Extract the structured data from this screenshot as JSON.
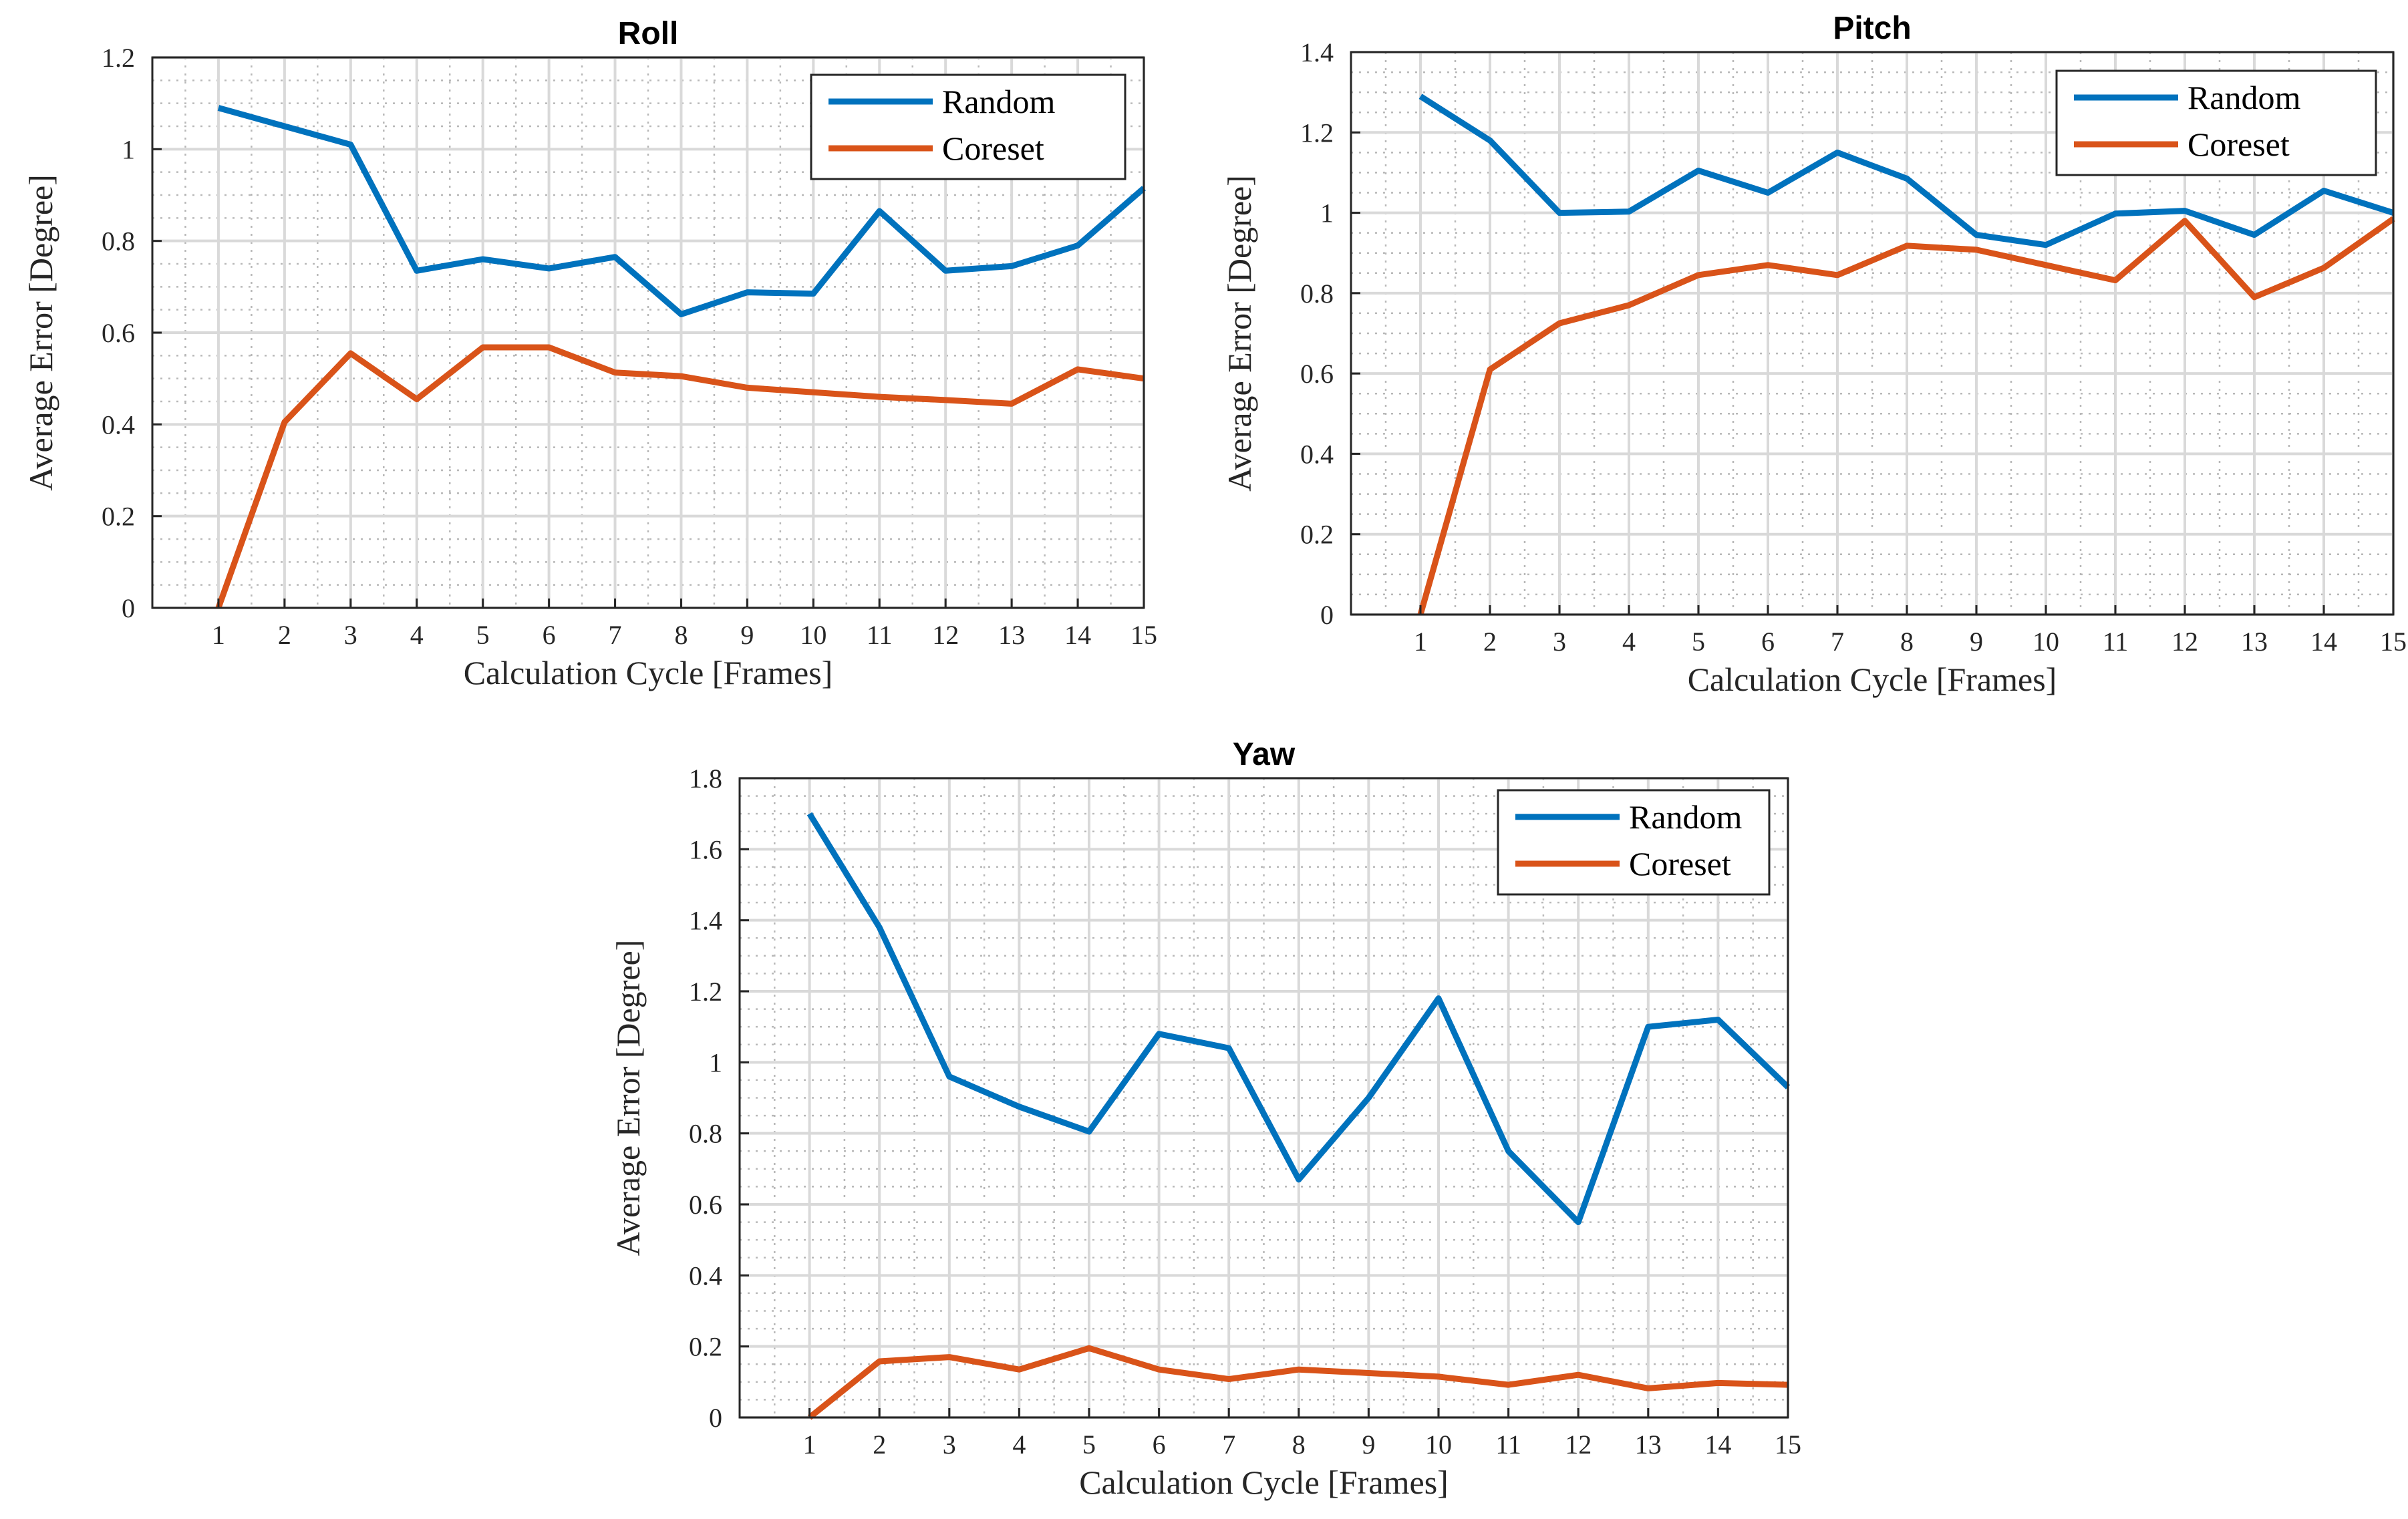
{
  "chart_data": [
    {
      "type": "line",
      "title": "Roll",
      "xlabel": "Calculation Cycle [Frames]",
      "ylabel": "Average Error [Degree]",
      "x": [
        1,
        2,
        3,
        4,
        5,
        6,
        7,
        8,
        9,
        10,
        11,
        12,
        13,
        14,
        15
      ],
      "xlim": [
        0,
        15
      ],
      "ylim": [
        0,
        1.2
      ],
      "yticks": [
        0,
        0.2,
        0.4,
        0.6,
        0.8,
        1,
        1.2
      ],
      "ytick_labels": [
        "0",
        "0.2",
        "0.4",
        "0.6",
        "0.8",
        "1",
        "1.2"
      ],
      "xtick_labels": [
        "1",
        "2",
        "3",
        "4",
        "5",
        "6",
        "7",
        "8",
        "9",
        "10",
        "11",
        "12",
        "13",
        "14",
        "15"
      ],
      "grid": "major and minor",
      "legend_location": "top-right",
      "series": [
        {
          "name": "Random",
          "color": "#0072BD",
          "values": [
            1.09,
            1.05,
            1.01,
            0.735,
            0.76,
            0.74,
            0.765,
            0.64,
            0.688,
            0.685,
            0.865,
            0.735,
            0.745,
            0.79,
            0.915
          ]
        },
        {
          "name": "Coreset",
          "color": "#D95319",
          "values": [
            0.0,
            0.405,
            0.555,
            0.455,
            0.568,
            0.568,
            0.513,
            0.505,
            0.48,
            0.47,
            0.46,
            0.453,
            0.445,
            0.52,
            0.5
          ]
        }
      ]
    },
    {
      "type": "line",
      "title": "Pitch",
      "xlabel": "Calculation Cycle [Frames]",
      "ylabel": "Average Error [Degree]",
      "x": [
        1,
        2,
        3,
        4,
        5,
        6,
        7,
        8,
        9,
        10,
        11,
        12,
        13,
        14,
        15
      ],
      "xlim": [
        0,
        15
      ],
      "ylim": [
        0,
        1.4
      ],
      "yticks": [
        0,
        0.2,
        0.4,
        0.6,
        0.8,
        1,
        1.2,
        1.4
      ],
      "ytick_labels": [
        "0",
        "0.2",
        "0.4",
        "0.6",
        "0.8",
        "1",
        "1.2",
        "1.4"
      ],
      "xtick_labels": [
        "1",
        "2",
        "3",
        "4",
        "5",
        "6",
        "7",
        "8",
        "9",
        "10",
        "11",
        "12",
        "13",
        "14",
        "15"
      ],
      "grid": "major and minor",
      "legend_location": "top-right",
      "series": [
        {
          "name": "Random",
          "color": "#0072BD",
          "values": [
            1.29,
            1.18,
            1.0,
            1.003,
            1.105,
            1.05,
            1.15,
            1.085,
            0.945,
            0.92,
            0.998,
            1.005,
            0.945,
            1.055,
            1.0
          ]
        },
        {
          "name": "Coreset",
          "color": "#D95319",
          "values": [
            0.0,
            0.61,
            0.725,
            0.77,
            0.845,
            0.87,
            0.845,
            0.918,
            0.908,
            0.87,
            0.832,
            0.98,
            0.79,
            0.863,
            0.985
          ]
        }
      ]
    },
    {
      "type": "line",
      "title": "Yaw",
      "xlabel": "Calculation Cycle [Frames]",
      "ylabel": "Average Error [Degree]",
      "x": [
        1,
        2,
        3,
        4,
        5,
        6,
        7,
        8,
        9,
        10,
        11,
        12,
        13,
        14,
        15
      ],
      "xlim": [
        0,
        15
      ],
      "ylim": [
        0,
        1.8
      ],
      "yticks": [
        0,
        0.2,
        0.4,
        0.6,
        0.8,
        1,
        1.2,
        1.4,
        1.6,
        1.8
      ],
      "ytick_labels": [
        "0",
        "0.2",
        "0.4",
        "0.6",
        "0.8",
        "1",
        "1.2",
        "1.4",
        "1.6",
        "1.8"
      ],
      "xtick_labels": [
        "1",
        "2",
        "3",
        "4",
        "5",
        "6",
        "7",
        "8",
        "9",
        "10",
        "11",
        "12",
        "13",
        "14",
        "15"
      ],
      "grid": "major and minor",
      "legend_location": "top-right",
      "series": [
        {
          "name": "Random",
          "color": "#0072BD",
          "values": [
            1.7,
            1.38,
            0.96,
            0.875,
            0.805,
            1.08,
            1.04,
            0.67,
            0.9,
            1.18,
            0.75,
            0.55,
            1.1,
            1.12,
            0.93
          ]
        },
        {
          "name": "Coreset",
          "color": "#D95319",
          "values": [
            0.0,
            0.158,
            0.17,
            0.135,
            0.195,
            0.135,
            0.108,
            0.135,
            0.125,
            0.115,
            0.092,
            0.12,
            0.082,
            0.097,
            0.092
          ]
        }
      ]
    }
  ]
}
